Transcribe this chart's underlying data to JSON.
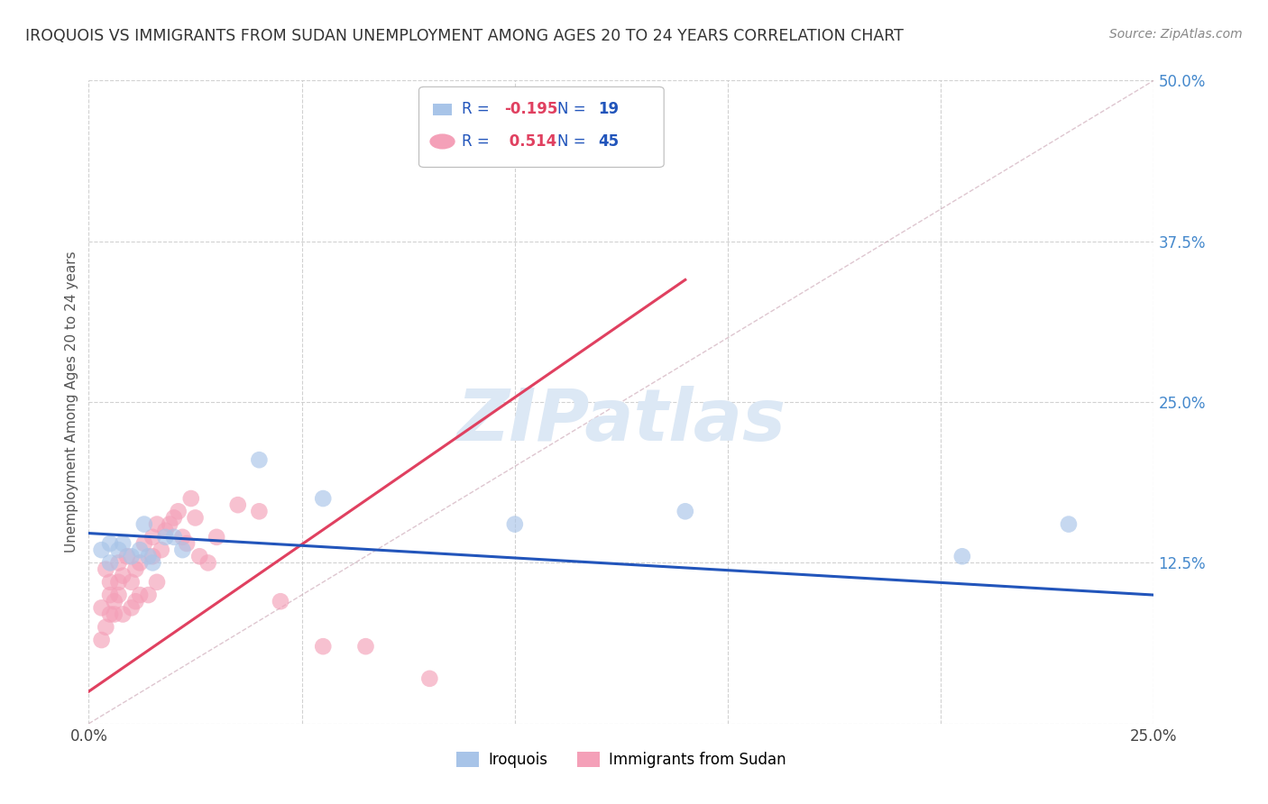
{
  "title": "IROQUOIS VS IMMIGRANTS FROM SUDAN UNEMPLOYMENT AMONG AGES 20 TO 24 YEARS CORRELATION CHART",
  "source": "Source: ZipAtlas.com",
  "ylabel": "Unemployment Among Ages 20 to 24 years",
  "legend_label1": "Iroquois",
  "legend_label2": "Immigrants from Sudan",
  "R1": -0.195,
  "N1": 19,
  "R2": 0.514,
  "N2": 45,
  "color1": "#a8c4e8",
  "color2": "#f4a0b8",
  "line_color1": "#2255bb",
  "line_color2": "#e04060",
  "diag_color": "#c8a0b0",
  "bg_color": "#ffffff",
  "grid_color": "#cccccc",
  "ytick_color": "#4488cc",
  "title_color": "#333333",
  "source_color": "#888888",
  "watermark": "ZIPatlas",
  "watermark_color": "#dce8f5",
  "xlim": [
    0.0,
    0.25
  ],
  "ylim": [
    0.0,
    0.5
  ],
  "yticks": [
    0.0,
    0.125,
    0.25,
    0.375,
    0.5
  ],
  "ytick_labels": [
    "",
    "12.5%",
    "25.0%",
    "37.5%",
    "50.0%"
  ],
  "xticks": [
    0.0,
    0.05,
    0.1,
    0.15,
    0.2,
    0.25
  ],
  "xtick_labels": [
    "0.0%",
    "",
    "",
    "",
    "",
    "25.0%"
  ],
  "iroquois_x": [
    0.003,
    0.005,
    0.005,
    0.007,
    0.008,
    0.01,
    0.012,
    0.013,
    0.014,
    0.015,
    0.018,
    0.02,
    0.022,
    0.04,
    0.055,
    0.1,
    0.14,
    0.205,
    0.23
  ],
  "iroquois_y": [
    0.135,
    0.14,
    0.125,
    0.135,
    0.14,
    0.13,
    0.135,
    0.155,
    0.13,
    0.125,
    0.145,
    0.145,
    0.135,
    0.205,
    0.175,
    0.155,
    0.165,
    0.13,
    0.155
  ],
  "sudan_x": [
    0.003,
    0.003,
    0.004,
    0.004,
    0.005,
    0.005,
    0.005,
    0.006,
    0.006,
    0.007,
    0.007,
    0.007,
    0.008,
    0.008,
    0.009,
    0.01,
    0.01,
    0.011,
    0.011,
    0.012,
    0.012,
    0.013,
    0.014,
    0.015,
    0.015,
    0.016,
    0.016,
    0.017,
    0.018,
    0.019,
    0.02,
    0.021,
    0.022,
    0.023,
    0.024,
    0.025,
    0.026,
    0.028,
    0.03,
    0.035,
    0.04,
    0.045,
    0.055,
    0.065,
    0.08
  ],
  "sudan_y": [
    0.09,
    0.065,
    0.12,
    0.075,
    0.085,
    0.1,
    0.11,
    0.085,
    0.095,
    0.1,
    0.11,
    0.125,
    0.085,
    0.115,
    0.13,
    0.09,
    0.11,
    0.095,
    0.12,
    0.1,
    0.125,
    0.14,
    0.1,
    0.13,
    0.145,
    0.155,
    0.11,
    0.135,
    0.15,
    0.155,
    0.16,
    0.165,
    0.145,
    0.14,
    0.175,
    0.16,
    0.13,
    0.125,
    0.145,
    0.17,
    0.165,
    0.095,
    0.06,
    0.06,
    0.035
  ],
  "sudan_line_x": [
    0.0,
    0.14
  ],
  "sudan_line_y": [
    0.025,
    0.345
  ],
  "iroquois_line_x": [
    0.0,
    0.25
  ],
  "iroquois_line_y": [
    0.148,
    0.1
  ]
}
